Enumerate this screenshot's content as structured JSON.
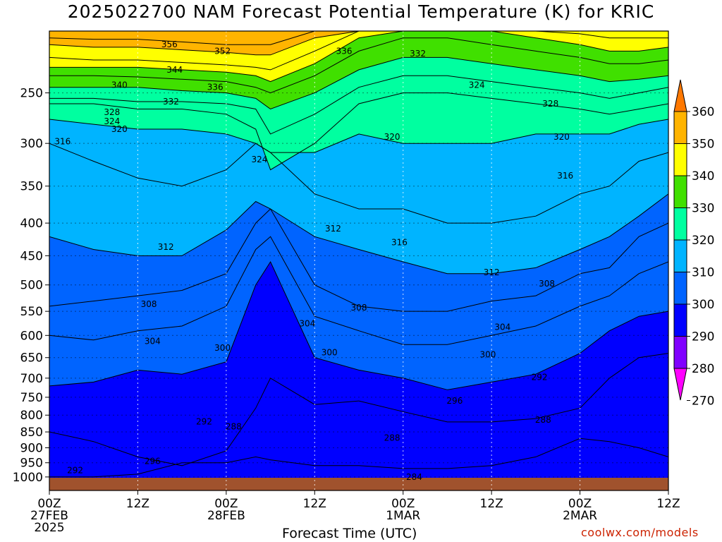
{
  "title": "2025022700 NAM Forecast Potential Temperature (K) for KRIC",
  "xlabel": "Forecast Time (UTC)",
  "credit": "coolwx.com/models",
  "colors": {
    "ground": "#a0522d",
    "levels": [
      {
        "min": 270,
        "color": "#ff00ff"
      },
      {
        "min": 280,
        "color": "#8000ff"
      },
      {
        "min": 290,
        "color": "#0000ff"
      },
      {
        "min": 300,
        "color": "#0064ff"
      },
      {
        "min": 310,
        "color": "#00b4ff"
      },
      {
        "min": 320,
        "color": "#00ffa0"
      },
      {
        "min": 330,
        "color": "#40e000"
      },
      {
        "min": 340,
        "color": "#ffff00"
      },
      {
        "min": 350,
        "color": "#ffb400"
      },
      {
        "min": 360,
        "color": "#ff7800"
      }
    ]
  },
  "chart_data": {
    "type": "heatmap",
    "title": "2025022700 NAM Forecast Potential Temperature (K) for KRIC",
    "xlabel": "Forecast Time (UTC)",
    "ylabel": "",
    "x_units": "forecast hour",
    "xlim": [
      0,
      84
    ],
    "x_ticks": [
      {
        "hour": 0,
        "lines": [
          "00Z",
          "27FEB",
          "2025"
        ]
      },
      {
        "hour": 12,
        "lines": [
          "12Z"
        ]
      },
      {
        "hour": 24,
        "lines": [
          "00Z",
          "28FEB"
        ]
      },
      {
        "hour": 36,
        "lines": [
          "12Z"
        ]
      },
      {
        "hour": 48,
        "lines": [
          "00Z",
          "1MAR"
        ]
      },
      {
        "hour": 60,
        "lines": [
          "12Z"
        ]
      },
      {
        "hour": 72,
        "lines": [
          "00Z",
          "2MAR"
        ]
      },
      {
        "hour": 84,
        "lines": [
          "12Z"
        ]
      }
    ],
    "y_units": "hPa",
    "ylim": [
      1000,
      200
    ],
    "y_ticks": [
      250,
      300,
      350,
      400,
      450,
      500,
      550,
      600,
      650,
      700,
      750,
      800,
      850,
      900,
      950,
      1000
    ],
    "colorbar": {
      "levels": [
        270,
        280,
        290,
        300,
        310,
        320,
        330,
        340,
        350,
        360
      ],
      "labels": [
        "270",
        "280",
        "290",
        "300",
        "310",
        "320",
        "330",
        "340",
        "350",
        "360"
      ]
    },
    "grid": true,
    "contour_interval_K": 2,
    "isentropes": [
      {
        "theta": 290,
        "p": [
          1000,
          1000,
          990,
          950,
          950,
          930,
          940,
          960,
          960,
          970,
          970,
          960,
          930,
          870,
          880,
          900,
          930
        ]
      },
      {
        "theta": 296,
        "p": [
          850,
          880,
          930,
          960,
          910,
          780,
          700,
          770,
          760,
          790,
          820,
          820,
          810,
          780,
          700,
          650,
          640
        ]
      },
      {
        "theta": 300,
        "p": [
          720,
          710,
          680,
          690,
          660,
          500,
          460,
          650,
          680,
          700,
          730,
          710,
          690,
          640,
          590,
          560,
          550
        ]
      },
      {
        "theta": 304,
        "p": [
          600,
          610,
          590,
          580,
          540,
          440,
          420,
          560,
          590,
          620,
          620,
          600,
          580,
          540,
          520,
          480,
          460
        ]
      },
      {
        "theta": 308,
        "p": [
          540,
          530,
          520,
          510,
          480,
          400,
          380,
          500,
          540,
          550,
          550,
          530,
          520,
          480,
          470,
          420,
          400
        ]
      },
      {
        "theta": 312,
        "p": [
          420,
          440,
          450,
          450,
          410,
          370,
          380,
          420,
          440,
          460,
          480,
          480,
          470,
          440,
          420,
          390,
          360
        ]
      },
      {
        "theta": 316,
        "p": [
          300,
          320,
          340,
          350,
          330,
          300,
          310,
          360,
          380,
          380,
          400,
          400,
          390,
          360,
          350,
          320,
          310
        ]
      },
      {
        "theta": 320,
        "p": [
          275,
          280,
          285,
          285,
          290,
          300,
          310,
          310,
          290,
          300,
          300,
          300,
          290,
          290,
          290,
          280,
          275
        ]
      },
      {
        "theta": 324,
        "p": [
          260,
          260,
          265,
          265,
          270,
          285,
          330,
          300,
          260,
          250,
          250,
          255,
          260,
          265,
          270,
          265,
          260
        ]
      },
      {
        "theta": 328,
        "p": [
          255,
          255,
          258,
          258,
          260,
          265,
          290,
          270,
          245,
          235,
          235,
          240,
          245,
          250,
          255,
          250,
          245
        ]
      },
      {
        "theta": 332,
        "p": [
          245,
          245,
          245,
          248,
          250,
          255,
          265,
          250,
          230,
          220,
          220,
          225,
          230,
          235,
          240,
          238,
          235
        ]
      },
      {
        "theta": 336,
        "p": [
          235,
          235,
          236,
          238,
          240,
          245,
          250,
          235,
          215,
          205,
          205,
          210,
          215,
          220,
          225,
          225,
          222
        ]
      },
      {
        "theta": 340,
        "p": [
          228,
          228,
          228,
          230,
          232,
          235,
          240,
          225,
          205,
          200,
          200,
          200,
          205,
          210,
          215,
          215,
          212
        ]
      },
      {
        "theta": 344,
        "p": [
          220,
          222,
          222,
          224,
          226,
          228,
          230,
          215,
          200,
          200,
          200,
          200,
          200,
          202,
          205,
          205,
          205
        ]
      },
      {
        "theta": 352,
        "p": [
          210,
          212,
          212,
          214,
          216,
          218,
          218,
          205,
          200,
          200,
          200,
          200,
          200,
          200,
          200,
          200,
          200
        ]
      },
      {
        "theta": 356,
        "p": [
          205,
          206,
          206,
          208,
          210,
          210,
          210,
          200,
          200,
          200,
          200,
          200,
          200,
          200,
          200,
          200,
          200
        ]
      }
    ],
    "isentrope_hours": [
      0,
      6,
      12,
      18,
      24,
      28,
      30,
      36,
      42,
      48,
      54,
      60,
      66,
      72,
      76,
      80,
      84
    ],
    "annotations": [
      {
        "text": "356",
        "hour": 16.3,
        "p": 210
      },
      {
        "text": "352",
        "hour": 23.5,
        "p": 215
      },
      {
        "text": "344",
        "hour": 17.0,
        "p": 230
      },
      {
        "text": "340",
        "hour": 9.5,
        "p": 243
      },
      {
        "text": "336",
        "hour": 22.5,
        "p": 245
      },
      {
        "text": "332",
        "hour": 16.5,
        "p": 258
      },
      {
        "text": "328",
        "hour": 8.5,
        "p": 268
      },
      {
        "text": "324",
        "hour": 8.5,
        "p": 277
      },
      {
        "text": "320",
        "hour": 9.5,
        "p": 285
      },
      {
        "text": "316",
        "hour": 1.8,
        "p": 298
      },
      {
        "text": "336",
        "hour": 40.0,
        "p": 215
      },
      {
        "text": "332",
        "hour": 50.0,
        "p": 217
      },
      {
        "text": "324",
        "hour": 58.0,
        "p": 243
      },
      {
        "text": "328",
        "hour": 68.0,
        "p": 260
      },
      {
        "text": "324",
        "hour": 28.5,
        "p": 318
      },
      {
        "text": "320",
        "hour": 46.5,
        "p": 293
      },
      {
        "text": "320",
        "hour": 69.5,
        "p": 293
      },
      {
        "text": "316",
        "hour": 70.0,
        "p": 337
      },
      {
        "text": "312",
        "hour": 15.8,
        "p": 436
      },
      {
        "text": "312",
        "hour": 38.5,
        "p": 408
      },
      {
        "text": "316",
        "hour": 47.5,
        "p": 429
      },
      {
        "text": "312",
        "hour": 60.0,
        "p": 478
      },
      {
        "text": "308",
        "hour": 13.5,
        "p": 536
      },
      {
        "text": "308",
        "hour": 42.0,
        "p": 543
      },
      {
        "text": "308",
        "hour": 67.5,
        "p": 498
      },
      {
        "text": "304",
        "hour": 14.0,
        "p": 613
      },
      {
        "text": "304",
        "hour": 35.0,
        "p": 575
      },
      {
        "text": "304",
        "hour": 61.5,
        "p": 582
      },
      {
        "text": "300",
        "hour": 23.5,
        "p": 628
      },
      {
        "text": "300",
        "hour": 38.0,
        "p": 638
      },
      {
        "text": "300",
        "hour": 59.5,
        "p": 643
      },
      {
        "text": "296",
        "hour": 55.0,
        "p": 760
      },
      {
        "text": "292",
        "hour": 66.5,
        "p": 698
      },
      {
        "text": "292",
        "hour": 21.0,
        "p": 819
      },
      {
        "text": "288",
        "hour": 25.0,
        "p": 834
      },
      {
        "text": "288",
        "hour": 46.5,
        "p": 868
      },
      {
        "text": "288",
        "hour": 67.0,
        "p": 814
      },
      {
        "text": "296",
        "hour": 14.0,
        "p": 945
      },
      {
        "text": "292",
        "hour": 3.5,
        "p": 977
      },
      {
        "text": "284",
        "hour": 49.5,
        "p": 1000
      }
    ]
  }
}
